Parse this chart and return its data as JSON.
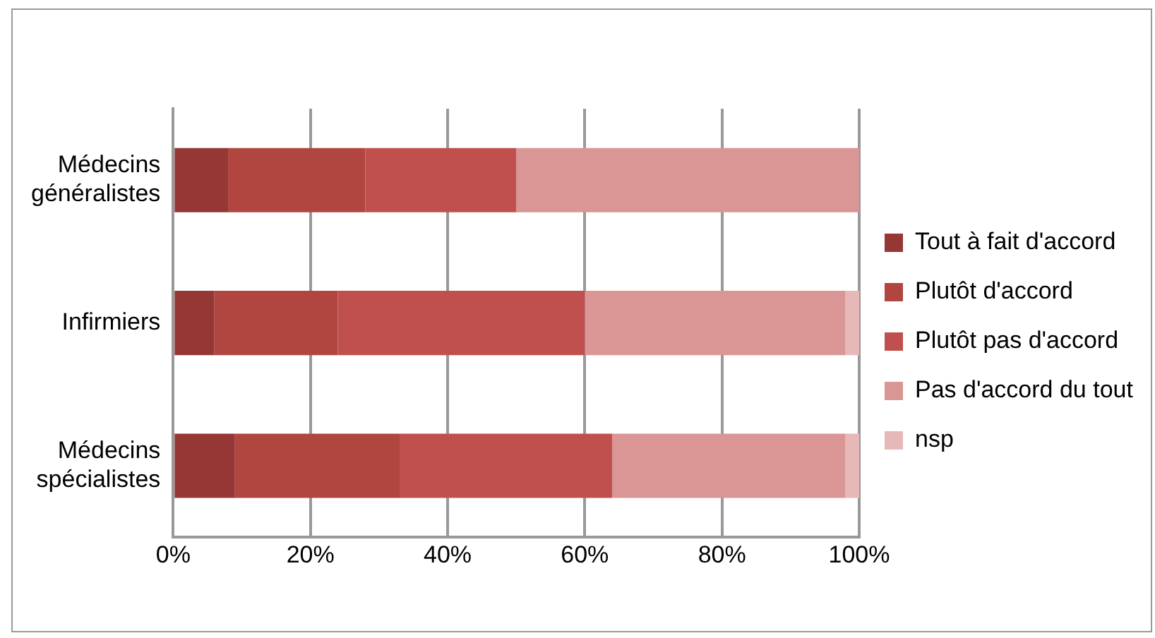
{
  "chart_data": {
    "type": "bar",
    "orientation": "horizontal",
    "stacked": true,
    "categories": [
      "Médecins généralistes",
      "Infirmiers",
      "Médecins spécialistes"
    ],
    "series": [
      {
        "name": "Tout à fait d'accord",
        "color": "#953735",
        "values": [
          8,
          6,
          9
        ]
      },
      {
        "name": "Plutôt d'accord",
        "color": "#b0463f",
        "values": [
          20,
          18,
          24
        ]
      },
      {
        "name": "Plutôt pas d'accord",
        "color": "#c0504d",
        "values": [
          22,
          36,
          31
        ]
      },
      {
        "name": "Pas d'accord du tout",
        "color": "#d99694",
        "values": [
          50,
          38,
          34
        ]
      },
      {
        "name": "nsp",
        "color": "#e6b9b8",
        "values": [
          0,
          2,
          2
        ]
      }
    ],
    "xlim": [
      0,
      100
    ],
    "xticks": [
      {
        "value": 0,
        "label": "0%"
      },
      {
        "value": 20,
        "label": "20%"
      },
      {
        "value": 40,
        "label": "40%"
      },
      {
        "value": 60,
        "label": "60%"
      },
      {
        "value": 80,
        "label": "80%"
      },
      {
        "value": 100,
        "label": "100%"
      }
    ],
    "grid": "x",
    "legend": "right"
  }
}
